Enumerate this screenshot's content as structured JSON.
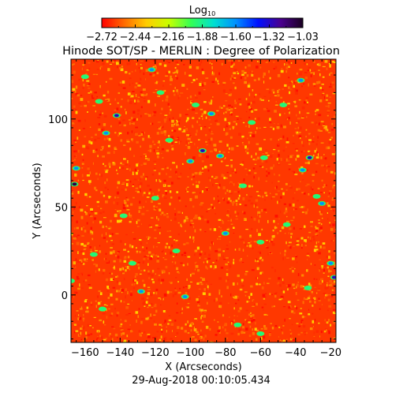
{
  "chart_data": {
    "type": "heatmap",
    "title": "Hinode SOT/SP - MERLIN : Degree of Polarization",
    "xlabel": "X (Arcseconds)",
    "ylabel": "Y (Arcseconds)",
    "timestamp": "29-Aug-2018 00:10:05.434",
    "xlim": [
      -168,
      -17
    ],
    "ylim": [
      -27,
      134
    ],
    "x_ticks": [
      -160,
      -140,
      -120,
      -100,
      -80,
      -60,
      -40,
      -20
    ],
    "y_ticks": [
      0,
      50,
      100
    ],
    "colorbar": {
      "label_main": "Log",
      "label_sub": "10",
      "range": [
        -2.72,
        -1.03
      ],
      "ticks": [
        "−2.72",
        "−2.44",
        "−2.16",
        "−1.88",
        "−1.60",
        "−1.32",
        "−1.03"
      ],
      "colormap": [
        "#ff0000",
        "#ff6a00",
        "#ffcc00",
        "#c8ff00",
        "#33ff55",
        "#00e0d0",
        "#0090ff",
        "#0010ff",
        "#4a0090",
        "#1a0020"
      ]
    },
    "background_level": -2.62,
    "features": [
      {
        "x": -165,
        "y": 72,
        "level": -1.6
      },
      {
        "x": -166,
        "y": 63,
        "level": -1.1
      },
      {
        "x": -122,
        "y": 128,
        "level": -1.6
      },
      {
        "x": -117,
        "y": 115,
        "level": -1.9
      },
      {
        "x": -160,
        "y": 124,
        "level": -1.9
      },
      {
        "x": -152,
        "y": 110,
        "level": -1.9
      },
      {
        "x": -148,
        "y": 92,
        "level": -1.6
      },
      {
        "x": -142,
        "y": 102,
        "level": -1.3
      },
      {
        "x": -97,
        "y": 108,
        "level": -1.9
      },
      {
        "x": -88,
        "y": 103,
        "level": -1.6
      },
      {
        "x": -100,
        "y": 76,
        "level": -1.6
      },
      {
        "x": -93,
        "y": 82,
        "level": -1.3
      },
      {
        "x": -83,
        "y": 79,
        "level": -1.6
      },
      {
        "x": -65,
        "y": 98,
        "level": -1.9
      },
      {
        "x": -47,
        "y": 108,
        "level": -1.9
      },
      {
        "x": -37,
        "y": 122,
        "level": -1.6
      },
      {
        "x": -70,
        "y": 62,
        "level": -1.9
      },
      {
        "x": -58,
        "y": 78,
        "level": -1.9
      },
      {
        "x": -32,
        "y": 78,
        "level": -1.3
      },
      {
        "x": -36,
        "y": 71,
        "level": -1.6
      },
      {
        "x": -25,
        "y": 52,
        "level": -1.6
      },
      {
        "x": -28,
        "y": 56,
        "level": -1.9
      },
      {
        "x": -80,
        "y": 35,
        "level": -1.6
      },
      {
        "x": -108,
        "y": 25,
        "level": -1.9
      },
      {
        "x": -133,
        "y": 18,
        "level": -1.9
      },
      {
        "x": -155,
        "y": 23,
        "level": -1.9
      },
      {
        "x": -168,
        "y": 8,
        "level": -1.9
      },
      {
        "x": -128,
        "y": 2,
        "level": -1.6
      },
      {
        "x": -103,
        "y": -1,
        "level": -1.6
      },
      {
        "x": -150,
        "y": -8,
        "level": -1.9
      },
      {
        "x": -73,
        "y": -17,
        "level": -1.9
      },
      {
        "x": -60,
        "y": -22,
        "level": -1.9
      },
      {
        "x": -33,
        "y": 4,
        "level": -1.9
      },
      {
        "x": -18,
        "y": 10,
        "level": -1.3
      },
      {
        "x": -20,
        "y": 18,
        "level": -1.6
      },
      {
        "x": -45,
        "y": 40,
        "level": -1.9
      },
      {
        "x": -60,
        "y": 30,
        "level": -1.9
      },
      {
        "x": -120,
        "y": 55,
        "level": -1.9
      },
      {
        "x": -138,
        "y": 45,
        "level": -1.9
      },
      {
        "x": -112,
        "y": 88,
        "level": -1.9
      }
    ]
  }
}
